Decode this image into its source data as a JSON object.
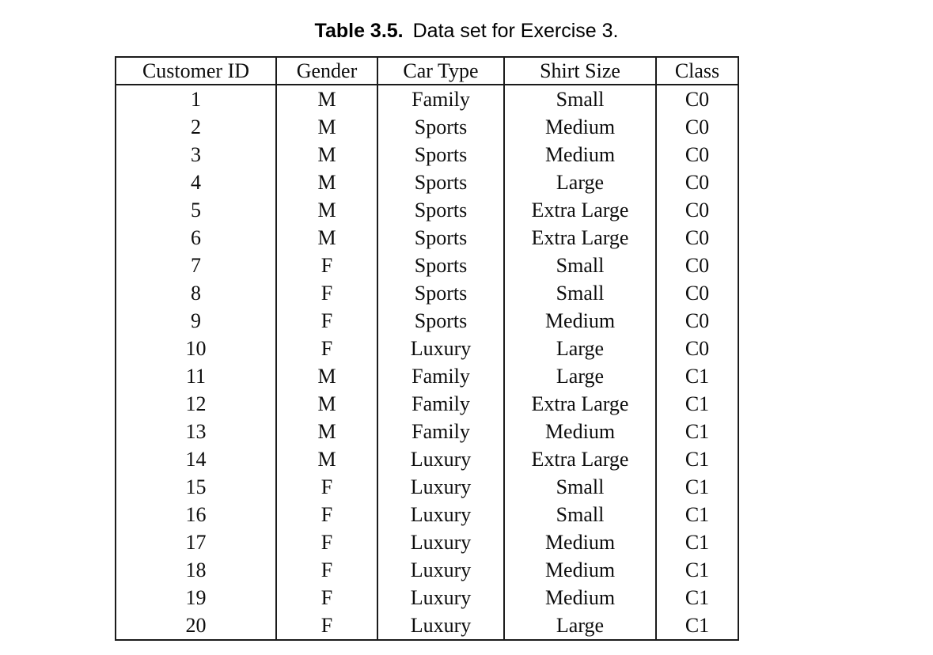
{
  "caption": {
    "label": "Table 3.5.",
    "text": "Data set for Exercise 3."
  },
  "table": {
    "columns": [
      "Customer ID",
      "Gender",
      "Car Type",
      "Shirt Size",
      "Class"
    ],
    "rows": [
      [
        "1",
        "M",
        "Family",
        "Small",
        "C0"
      ],
      [
        "2",
        "M",
        "Sports",
        "Medium",
        "C0"
      ],
      [
        "3",
        "M",
        "Sports",
        "Medium",
        "C0"
      ],
      [
        "4",
        "M",
        "Sports",
        "Large",
        "C0"
      ],
      [
        "5",
        "M",
        "Sports",
        "Extra Large",
        "C0"
      ],
      [
        "6",
        "M",
        "Sports",
        "Extra Large",
        "C0"
      ],
      [
        "7",
        "F",
        "Sports",
        "Small",
        "C0"
      ],
      [
        "8",
        "F",
        "Sports",
        "Small",
        "C0"
      ],
      [
        "9",
        "F",
        "Sports",
        "Medium",
        "C0"
      ],
      [
        "10",
        "F",
        "Luxury",
        "Large",
        "C0"
      ],
      [
        "11",
        "M",
        "Family",
        "Large",
        "C1"
      ],
      [
        "12",
        "M",
        "Family",
        "Extra Large",
        "C1"
      ],
      [
        "13",
        "M",
        "Family",
        "Medium",
        "C1"
      ],
      [
        "14",
        "M",
        "Luxury",
        "Extra Large",
        "C1"
      ],
      [
        "15",
        "F",
        "Luxury",
        "Small",
        "C1"
      ],
      [
        "16",
        "F",
        "Luxury",
        "Small",
        "C1"
      ],
      [
        "17",
        "F",
        "Luxury",
        "Medium",
        "C1"
      ],
      [
        "18",
        "F",
        "Luxury",
        "Medium",
        "C1"
      ],
      [
        "19",
        "F",
        "Luxury",
        "Medium",
        "C1"
      ],
      [
        "20",
        "F",
        "Luxury",
        "Large",
        "C1"
      ]
    ]
  },
  "chart_data": {
    "type": "table",
    "title": "Table 3.5. Data set for Exercise 3.",
    "columns": [
      "Customer ID",
      "Gender",
      "Car Type",
      "Shirt Size",
      "Class"
    ],
    "rows": [
      [
        "1",
        "M",
        "Family",
        "Small",
        "C0"
      ],
      [
        "2",
        "M",
        "Sports",
        "Medium",
        "C0"
      ],
      [
        "3",
        "M",
        "Sports",
        "Medium",
        "C0"
      ],
      [
        "4",
        "M",
        "Sports",
        "Large",
        "C0"
      ],
      [
        "5",
        "M",
        "Sports",
        "Extra Large",
        "C0"
      ],
      [
        "6",
        "M",
        "Sports",
        "Extra Large",
        "C0"
      ],
      [
        "7",
        "F",
        "Sports",
        "Small",
        "C0"
      ],
      [
        "8",
        "F",
        "Sports",
        "Small",
        "C0"
      ],
      [
        "9",
        "F",
        "Sports",
        "Medium",
        "C0"
      ],
      [
        "10",
        "F",
        "Luxury",
        "Large",
        "C0"
      ],
      [
        "11",
        "M",
        "Family",
        "Large",
        "C1"
      ],
      [
        "12",
        "M",
        "Family",
        "Extra Large",
        "C1"
      ],
      [
        "13",
        "M",
        "Family",
        "Medium",
        "C1"
      ],
      [
        "14",
        "M",
        "Luxury",
        "Extra Large",
        "C1"
      ],
      [
        "15",
        "F",
        "Luxury",
        "Small",
        "C1"
      ],
      [
        "16",
        "F",
        "Luxury",
        "Small",
        "C1"
      ],
      [
        "17",
        "F",
        "Luxury",
        "Medium",
        "C1"
      ],
      [
        "18",
        "F",
        "Luxury",
        "Medium",
        "C1"
      ],
      [
        "19",
        "F",
        "Luxury",
        "Medium",
        "C1"
      ],
      [
        "20",
        "F",
        "Luxury",
        "Large",
        "C1"
      ]
    ],
    "colors": {
      "text": "#0d0d0d",
      "border": "#1b1b1b",
      "background": "#ffffff"
    }
  }
}
